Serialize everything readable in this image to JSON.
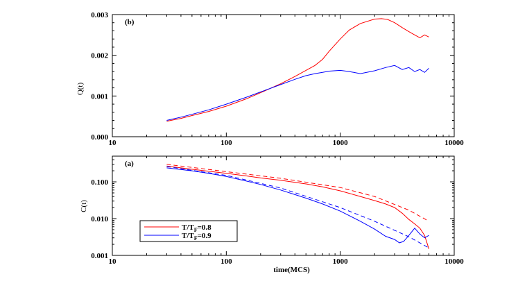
{
  "chart_data": [
    {
      "id": "b",
      "type": "line",
      "panel_label": "(b)",
      "xscale": "log",
      "yscale": "linear",
      "xlim": [
        10,
        10000
      ],
      "ylim": [
        0.0,
        0.003
      ],
      "xticks": [
        "10",
        "100",
        "1000",
        "10000"
      ],
      "yticks": [
        "0.000",
        "0.001",
        "0.002",
        "0.003"
      ],
      "xlabel": "",
      "ylabel": "Q(t)",
      "grid": false,
      "series": [
        {
          "color": "#ff0000",
          "x": [
            30,
            40,
            50,
            70,
            100,
            150,
            200,
            300,
            400,
            500,
            600,
            700,
            800,
            1000,
            1200,
            1500,
            2000,
            2300,
            2600,
            3000,
            3500,
            4000,
            4500,
            5000,
            5500,
            6000
          ],
          "y": [
            0.00038,
            0.00045,
            0.00052,
            0.00062,
            0.00075,
            0.00093,
            0.00108,
            0.0013,
            0.00148,
            0.00163,
            0.00175,
            0.0019,
            0.0021,
            0.0024,
            0.00262,
            0.00278,
            0.00289,
            0.0029,
            0.00288,
            0.0028,
            0.00268,
            0.00258,
            0.0025,
            0.00243,
            0.0025,
            0.00245
          ]
        },
        {
          "color": "#0000ff",
          "x": [
            30,
            40,
            50,
            70,
            100,
            150,
            200,
            300,
            400,
            500,
            600,
            700,
            800,
            1000,
            1200,
            1500,
            2000,
            2500,
            3000,
            3500,
            4000,
            4500,
            5000,
            5500,
            6000
          ],
          "y": [
            0.0004,
            0.00048,
            0.00055,
            0.00066,
            0.0008,
            0.00097,
            0.0011,
            0.00128,
            0.00141,
            0.0015,
            0.00155,
            0.00158,
            0.00161,
            0.00163,
            0.0016,
            0.00155,
            0.00162,
            0.0017,
            0.00175,
            0.00165,
            0.0017,
            0.0016,
            0.00165,
            0.00158,
            0.00168
          ]
        }
      ]
    },
    {
      "id": "a",
      "type": "line",
      "panel_label": "(a)",
      "xscale": "log",
      "yscale": "log",
      "xlim": [
        10,
        10000
      ],
      "ylim": [
        0.001,
        0.5
      ],
      "xticks": [
        "10",
        "100",
        "1000",
        "10000"
      ],
      "yticks": [
        "0.001",
        "0.010",
        "0.100"
      ],
      "xlabel": "time(MCS)",
      "ylabel": "C(t)",
      "grid": false,
      "legend": {
        "position": "bottom-left",
        "entries": [
          {
            "color": "#ff0000",
            "label": "T/T",
            "sub": "F",
            "suffix": "=0.8"
          },
          {
            "color": "#0000ff",
            "label": "T/T",
            "sub": "F",
            "suffix": "=0.9"
          }
        ]
      },
      "series": [
        {
          "color": "#ff0000",
          "style": "solid",
          "x": [
            30,
            50,
            70,
            100,
            150,
            200,
            300,
            400,
            500,
            700,
            1000,
            1500,
            2000,
            2500,
            3000,
            3500,
            4000,
            4500,
            5000,
            5500,
            6000
          ],
          "y": [
            0.27,
            0.22,
            0.195,
            0.17,
            0.145,
            0.128,
            0.11,
            0.097,
            0.088,
            0.073,
            0.057,
            0.04,
            0.031,
            0.025,
            0.02,
            0.014,
            0.0095,
            0.0072,
            0.0055,
            0.0035,
            0.0015
          ]
        },
        {
          "color": "#ff0000",
          "style": "dashed",
          "x": [
            30,
            100,
            300,
            1000,
            2000,
            4000,
            6000
          ],
          "y": [
            0.3,
            0.19,
            0.125,
            0.07,
            0.04,
            0.017,
            0.0085
          ]
        },
        {
          "color": "#0000ff",
          "style": "solid",
          "x": [
            30,
            50,
            70,
            100,
            150,
            200,
            300,
            400,
            500,
            700,
            1000,
            1500,
            2000,
            2500,
            3000,
            3300,
            3600,
            4000,
            4500,
            5000,
            5500,
            6000
          ],
          "y": [
            0.24,
            0.2,
            0.17,
            0.14,
            0.105,
            0.085,
            0.06,
            0.045,
            0.036,
            0.025,
            0.016,
            0.0085,
            0.0052,
            0.0033,
            0.0027,
            0.0022,
            0.0024,
            0.0035,
            0.0055,
            0.0038,
            0.003,
            0.0035
          ]
        },
        {
          "color": "#0000ff",
          "style": "dashed",
          "x": [
            30,
            100,
            300,
            1000,
            2000,
            4000,
            6000
          ],
          "y": [
            0.26,
            0.15,
            0.068,
            0.02,
            0.0085,
            0.0032,
            0.0016
          ]
        }
      ]
    }
  ]
}
